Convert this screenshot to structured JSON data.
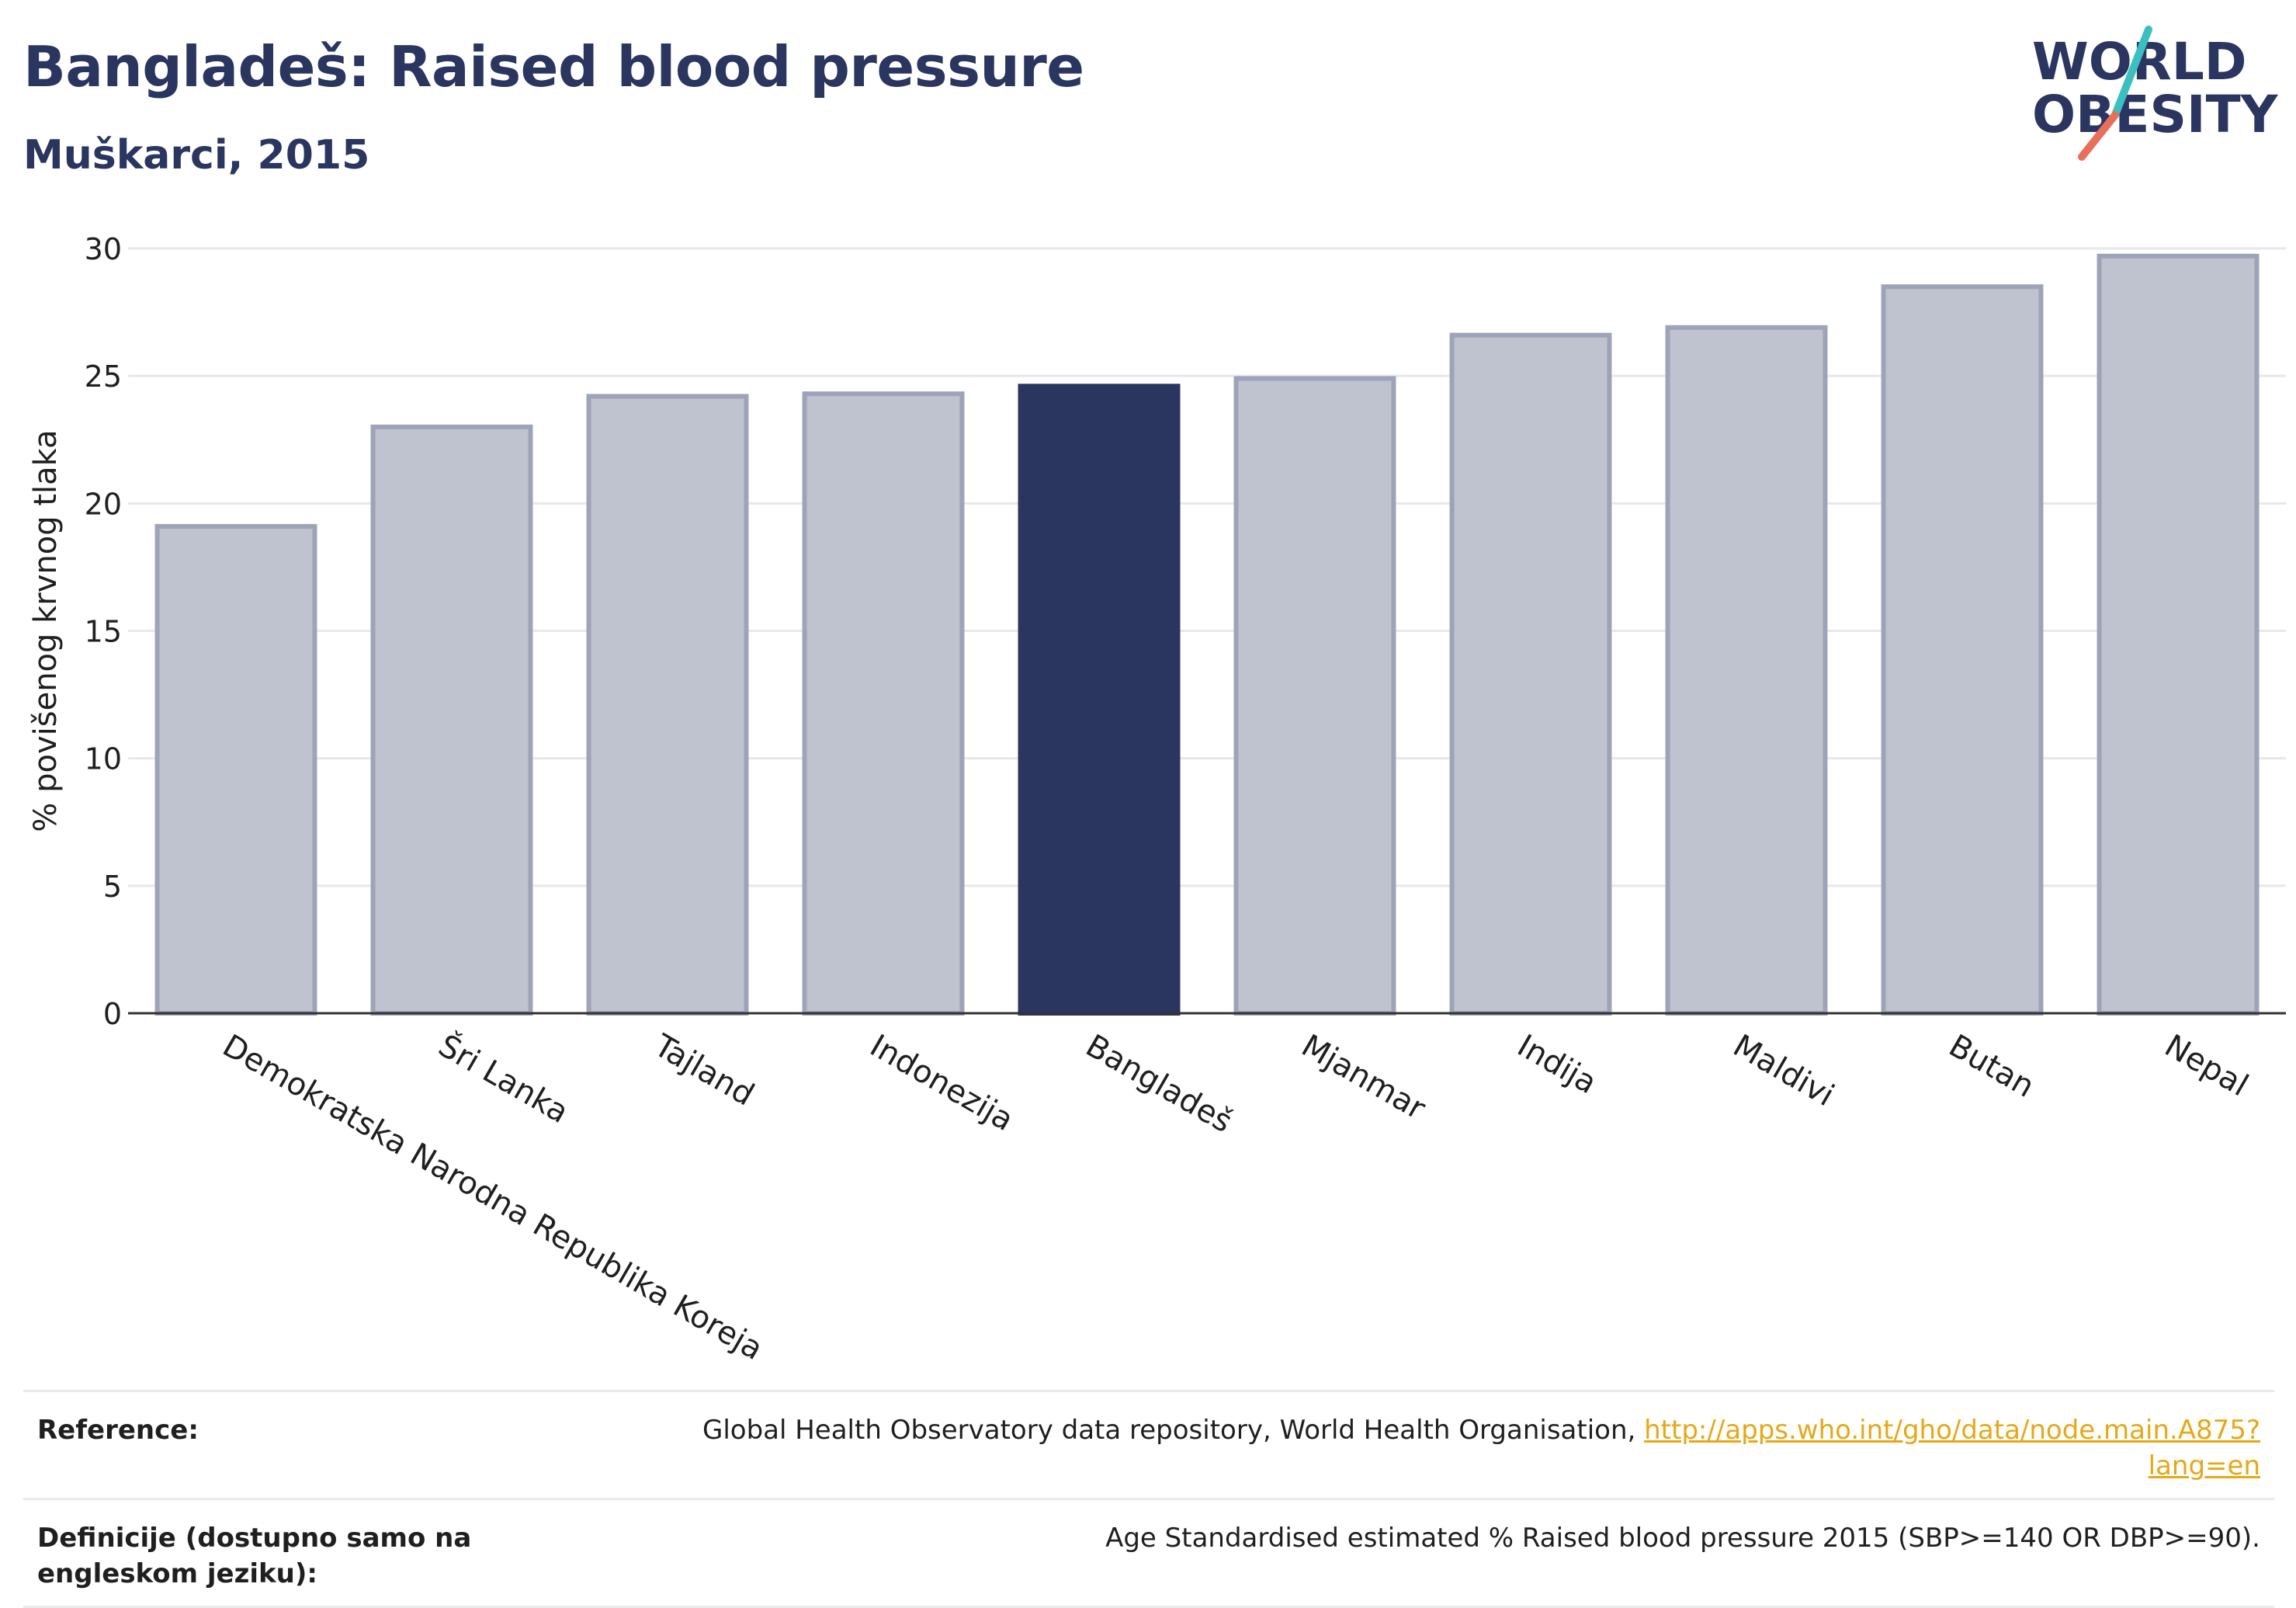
{
  "title": "Bangladeš: Raised blood pressure",
  "subtitle": "Muškarci, 2015",
  "logo": {
    "line1": "WORLD",
    "line2": "OBESITY",
    "colors": {
      "text": "#2a3560",
      "slash_teal": "#3bbfc0",
      "slash_coral": "#e8705a"
    }
  },
  "colors": {
    "highlight_bar": "#2a3560",
    "other_bar_fill": "#bfc2cf",
    "other_bar_stroke": "#9ea3b8",
    "grid": "#e8e8ec",
    "axis": "#333333"
  },
  "chart_data": {
    "type": "bar",
    "categories": [
      "Demokratska Narodna Republika Koreja",
      "Šri Lanka",
      "Tajland",
      "Indonezija",
      "Bangladeš",
      "Mjanmar",
      "Indija",
      "Maldivi",
      "Butan",
      "Nepal"
    ],
    "values": [
      19.1,
      23.0,
      24.2,
      24.3,
      24.6,
      24.9,
      26.6,
      26.9,
      28.5,
      29.7
    ],
    "highlight": "Bangladeš",
    "ylabel": "% povišenog krvnog tlaka",
    "xlabel": "",
    "ylim": [
      0,
      30
    ],
    "yticks": [
      0,
      5,
      10,
      15,
      20,
      25,
      30
    ],
    "grid": true,
    "legend": "none"
  },
  "footer": {
    "reference_label": "Reference:",
    "reference_text": "Global Health Observatory data repository, World Health Organisation, ",
    "reference_link": "http://apps.who.int/gho/data/node.main.A875?lang=en",
    "definition_label": "Definicije (dostupno samo na engleskom jeziku):",
    "definition_text": "Age Standardised estimated % Raised blood pressure 2015 (SBP>=140 OR DBP>=90)."
  }
}
